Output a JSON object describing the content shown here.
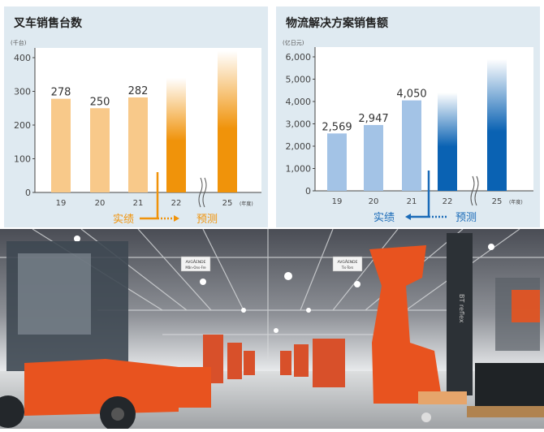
{
  "chart_data": [
    {
      "type": "bar",
      "title": "叉车销售台数",
      "unit_label": "(千台)",
      "categories": [
        "19",
        "20",
        "21",
        "22",
        "25"
      ],
      "x_unit_label": "(年度)",
      "values": [
        278,
        250,
        282,
        340,
        420
      ],
      "data_labels": [
        "278",
        "250",
        "282",
        "",
        ""
      ],
      "forecast": [
        false,
        false,
        false,
        true,
        true
      ],
      "ylim": [
        0,
        400
      ],
      "yticks": [
        "0",
        "100",
        "200",
        "300",
        "400"
      ],
      "ytick_values": [
        0,
        100,
        200,
        300,
        400
      ],
      "axis_break_between": [
        "22",
        "25"
      ],
      "legend": {
        "actual": "实绩",
        "forecast": "预测"
      },
      "colors": {
        "actual": "#f8c98a",
        "forecast": "#f0930a",
        "text": "#f0930a",
        "panel": "#dfeaf1"
      }
    },
    {
      "type": "bar",
      "title": "物流解决方案销售额",
      "unit_label": "(亿日元)",
      "categories": [
        "19",
        "20",
        "21",
        "22",
        "25"
      ],
      "x_unit_label": "(年度)",
      "values": [
        2569,
        2947,
        4050,
        4400,
        5900
      ],
      "data_labels": [
        "2,569",
        "2,947",
        "4,050",
        "",
        ""
      ],
      "forecast": [
        false,
        false,
        false,
        true,
        true
      ],
      "ylim": [
        0,
        6000
      ],
      "yticks": [
        "0",
        "1,000",
        "2,000",
        "3,000",
        "4,000",
        "5,000",
        "6,000"
      ],
      "ytick_values": [
        0,
        1000,
        2000,
        3000,
        4000,
        5000,
        6000
      ],
      "axis_break_between": [
        "22",
        "25"
      ],
      "legend": {
        "actual": "实绩",
        "forecast": "预测"
      },
      "colors": {
        "actual": "#a3c3e6",
        "forecast": "#0a62b3",
        "text": "#1a6bb8",
        "panel": "#dfeaf1"
      }
    }
  ],
  "photo": {
    "sign_left": [
      "AVGÅENDE",
      "Mån-Ons-Fre"
    ],
    "sign_right": [
      "AVGÅENDE",
      "Tis-Tors"
    ],
    "mast_text": "BT reflex",
    "colors": {
      "forklift": "#e8531f",
      "ceiling": "#3a3d44",
      "floor": "#c9cbcd"
    }
  }
}
